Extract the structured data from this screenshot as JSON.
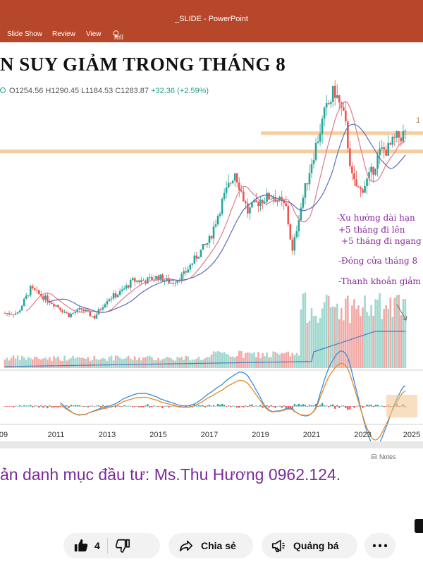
{
  "window": {
    "title": "_SLIDE - PowerPoint"
  },
  "ribbon": {
    "tabs": [
      "Slide Show",
      "Review",
      "View"
    ],
    "tell_me": "Tell me what you want to do..."
  },
  "slide": {
    "title": "N SUY GIẢM TRONG THÁNG 8",
    "ohlc": {
      "open": "O1254.56",
      "high": "H1290.45",
      "low": "L1184.53",
      "close": "C1283.87",
      "change": "+32.36 (+2.59%)"
    },
    "right_edge_label": "1",
    "annotations": [
      "-Xu hướng dài hạn",
      "+5 tháng đi lên",
      "+5 tháng đi ngang",
      "-Đóng cửa tháng 8",
      "-Thanh khoản giảm"
    ],
    "x_axis_labels": [
      "09",
      "2011",
      "2013",
      "2015",
      "2017",
      "2019",
      "2021",
      "2023",
      "2025"
    ],
    "notes_label": "Notes",
    "footer_text": "ản danh mục đầu tư: Ms.Thu Hương 0962.124."
  },
  "colors": {
    "up": "#26a69a",
    "down": "#ef5350",
    "resistance": "#f3c48e",
    "annotation": "#8a2a9c",
    "ppt_red": "#b7472a"
  },
  "chart_data": {
    "type": "line",
    "title": "",
    "series": [
      {
        "name": "",
        "x": [
          2009.5,
          2010,
          2010.5,
          2011,
          2011.5,
          2012,
          2012.5,
          2013,
          2013.5,
          2014,
          2014.5,
          2015,
          2015.5,
          2016,
          2016.5,
          2017,
          2017.5,
          2018,
          2018.5,
          2019,
          2019.5,
          2020,
          2020.25,
          2020.5,
          2021,
          2021.5,
          2021.9,
          2022.3,
          2022.6,
          2022.9,
          2023.3,
          2023.7,
          2024,
          2024.3,
          2024.6
        ],
        "values": [
          400,
          520,
          480,
          440,
          390,
          420,
          380,
          470,
          500,
          560,
          560,
          580,
          550,
          590,
          680,
          760,
          950,
          1100,
          900,
          960,
          980,
          920,
          700,
          880,
          1150,
          1380,
          1500,
          1350,
          1050,
          1000,
          1080,
          1200,
          1210,
          1260,
          1283
        ]
      }
    ],
    "hlines": [
      1290,
      1200
    ],
    "xlim": [
      2009,
      2025
    ],
    "grid": false
  },
  "actions": {
    "like_count": "4",
    "share_label": "Chia sẻ",
    "promote_label": "Quảng bá"
  }
}
